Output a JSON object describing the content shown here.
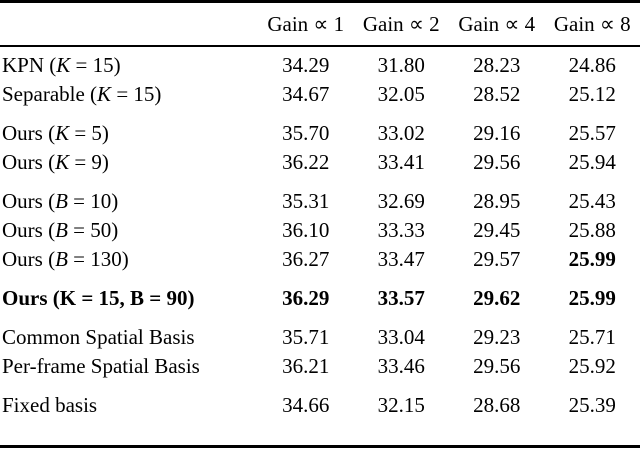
{
  "colors": {
    "background": "#ffffff",
    "text": "#000000",
    "rule": "#000000"
  },
  "table": {
    "columns": [
      {
        "label": "Gain ∝ 1"
      },
      {
        "label": "Gain ∝ 2"
      },
      {
        "label": "Gain ∝ 4"
      },
      {
        "label": "Gain ∝ 8"
      }
    ],
    "groups": [
      {
        "rows": [
          {
            "label": [
              {
                "text": "KPN ("
              },
              {
                "text": "K",
                "italic": true
              },
              {
                "text": " = 15)"
              }
            ],
            "values": [
              "34.29",
              "31.80",
              "28.23",
              "24.86"
            ]
          },
          {
            "label": [
              {
                "text": "Separable ("
              },
              {
                "text": "K",
                "italic": true
              },
              {
                "text": " = 15)"
              }
            ],
            "values": [
              "34.67",
              "32.05",
              "28.52",
              "25.12"
            ]
          }
        ]
      },
      {
        "rows": [
          {
            "label": [
              {
                "text": "Ours ("
              },
              {
                "text": "K",
                "italic": true
              },
              {
                "text": " = 5)"
              }
            ],
            "values": [
              "35.70",
              "33.02",
              "29.16",
              "25.57"
            ]
          },
          {
            "label": [
              {
                "text": "Ours ("
              },
              {
                "text": "K",
                "italic": true
              },
              {
                "text": " = 9)"
              }
            ],
            "values": [
              "36.22",
              "33.41",
              "29.56",
              "25.94"
            ]
          }
        ]
      },
      {
        "rows": [
          {
            "label": [
              {
                "text": "Ours ("
              },
              {
                "text": "B",
                "italic": true
              },
              {
                "text": " = 10)"
              }
            ],
            "values": [
              "35.31",
              "32.69",
              "28.95",
              "25.43"
            ]
          },
          {
            "label": [
              {
                "text": "Ours ("
              },
              {
                "text": "B",
                "italic": true
              },
              {
                "text": " = 50)"
              }
            ],
            "values": [
              "36.10",
              "33.33",
              "29.45",
              "25.88"
            ]
          },
          {
            "label": [
              {
                "text": "Ours ("
              },
              {
                "text": "B",
                "italic": true
              },
              {
                "text": " = 130)"
              }
            ],
            "values": [
              "36.27",
              "33.47",
              "29.57",
              "25.99"
            ],
            "bold_values": [
              false,
              false,
              false,
              true
            ]
          }
        ]
      },
      {
        "rows": [
          {
            "label": [
              {
                "text": "Ours (K = 15, B = 90)"
              }
            ],
            "values": [
              "36.29",
              "33.57",
              "29.62",
              "25.99"
            ],
            "bold": true
          }
        ]
      },
      {
        "rows": [
          {
            "label": [
              {
                "text": "Common Spatial Basis"
              }
            ],
            "values": [
              "35.71",
              "33.04",
              "29.23",
              "25.71"
            ]
          },
          {
            "label": [
              {
                "text": "Per-frame Spatial Basis"
              }
            ],
            "values": [
              "36.21",
              "33.46",
              "29.56",
              "25.92"
            ]
          }
        ]
      },
      {
        "rows": [
          {
            "label": [
              {
                "text": "Fixed basis"
              }
            ],
            "values": [
              "34.66",
              "32.15",
              "28.68",
              "25.39"
            ]
          }
        ]
      }
    ]
  }
}
